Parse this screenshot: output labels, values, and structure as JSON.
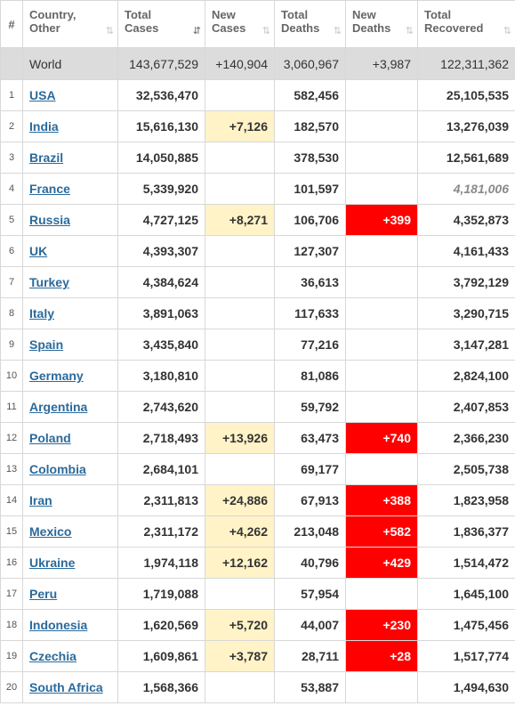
{
  "headers": {
    "num": "#",
    "country": [
      "Country,",
      "Other"
    ],
    "total_cases": [
      "Total",
      "Cases"
    ],
    "new_cases": [
      "New",
      "Cases"
    ],
    "total_deaths": [
      "Total",
      "Deaths"
    ],
    "new_deaths": [
      "New",
      "Deaths"
    ],
    "total_recovered": [
      "Total",
      "Recovered"
    ]
  },
  "sort_icons": {
    "inactive": "⇅",
    "active": "⇵"
  },
  "world": {
    "name": "World",
    "total_cases": "143,677,529",
    "new_cases": "+140,904",
    "total_deaths": "3,060,967",
    "new_deaths": "+3,987",
    "total_recovered": "122,311,362"
  },
  "rows": [
    {
      "num": "1",
      "country": "USA",
      "total_cases": "32,536,470",
      "new_cases": "",
      "total_deaths": "582,456",
      "new_deaths": "",
      "total_recovered": "25,105,535",
      "recovered_estimated": false
    },
    {
      "num": "2",
      "country": "India",
      "total_cases": "15,616,130",
      "new_cases": "+7,126",
      "total_deaths": "182,570",
      "new_deaths": "",
      "total_recovered": "13,276,039",
      "recovered_estimated": false
    },
    {
      "num": "3",
      "country": "Brazil",
      "total_cases": "14,050,885",
      "new_cases": "",
      "total_deaths": "378,530",
      "new_deaths": "",
      "total_recovered": "12,561,689",
      "recovered_estimated": false
    },
    {
      "num": "4",
      "country": "France",
      "total_cases": "5,339,920",
      "new_cases": "",
      "total_deaths": "101,597",
      "new_deaths": "",
      "total_recovered": "4,181,006",
      "recovered_estimated": true
    },
    {
      "num": "5",
      "country": "Russia",
      "total_cases": "4,727,125",
      "new_cases": "+8,271",
      "total_deaths": "106,706",
      "new_deaths": "+399",
      "total_recovered": "4,352,873",
      "recovered_estimated": false
    },
    {
      "num": "6",
      "country": "UK",
      "total_cases": "4,393,307",
      "new_cases": "",
      "total_deaths": "127,307",
      "new_deaths": "",
      "total_recovered": "4,161,433",
      "recovered_estimated": false
    },
    {
      "num": "7",
      "country": "Turkey",
      "total_cases": "4,384,624",
      "new_cases": "",
      "total_deaths": "36,613",
      "new_deaths": "",
      "total_recovered": "3,792,129",
      "recovered_estimated": false
    },
    {
      "num": "8",
      "country": "Italy",
      "total_cases": "3,891,063",
      "new_cases": "",
      "total_deaths": "117,633",
      "new_deaths": "",
      "total_recovered": "3,290,715",
      "recovered_estimated": false
    },
    {
      "num": "9",
      "country": "Spain",
      "total_cases": "3,435,840",
      "new_cases": "",
      "total_deaths": "77,216",
      "new_deaths": "",
      "total_recovered": "3,147,281",
      "recovered_estimated": false
    },
    {
      "num": "10",
      "country": "Germany",
      "total_cases": "3,180,810",
      "new_cases": "",
      "total_deaths": "81,086",
      "new_deaths": "",
      "total_recovered": "2,824,100",
      "recovered_estimated": false
    },
    {
      "num": "11",
      "country": "Argentina",
      "total_cases": "2,743,620",
      "new_cases": "",
      "total_deaths": "59,792",
      "new_deaths": "",
      "total_recovered": "2,407,853",
      "recovered_estimated": false
    },
    {
      "num": "12",
      "country": "Poland",
      "total_cases": "2,718,493",
      "new_cases": "+13,926",
      "total_deaths": "63,473",
      "new_deaths": "+740",
      "total_recovered": "2,366,230",
      "recovered_estimated": false
    },
    {
      "num": "13",
      "country": "Colombia",
      "total_cases": "2,684,101",
      "new_cases": "",
      "total_deaths": "69,177",
      "new_deaths": "",
      "total_recovered": "2,505,738",
      "recovered_estimated": false
    },
    {
      "num": "14",
      "country": "Iran",
      "total_cases": "2,311,813",
      "new_cases": "+24,886",
      "total_deaths": "67,913",
      "new_deaths": "+388",
      "total_recovered": "1,823,958",
      "recovered_estimated": false
    },
    {
      "num": "15",
      "country": "Mexico",
      "total_cases": "2,311,172",
      "new_cases": "+4,262",
      "total_deaths": "213,048",
      "new_deaths": "+582",
      "total_recovered": "1,836,377",
      "recovered_estimated": false
    },
    {
      "num": "16",
      "country": "Ukraine",
      "total_cases": "1,974,118",
      "new_cases": "+12,162",
      "total_deaths": "40,796",
      "new_deaths": "+429",
      "total_recovered": "1,514,472",
      "recovered_estimated": false
    },
    {
      "num": "17",
      "country": "Peru",
      "total_cases": "1,719,088",
      "new_cases": "",
      "total_deaths": "57,954",
      "new_deaths": "",
      "total_recovered": "1,645,100",
      "recovered_estimated": false
    },
    {
      "num": "18",
      "country": "Indonesia",
      "total_cases": "1,620,569",
      "new_cases": "+5,720",
      "total_deaths": "44,007",
      "new_deaths": "+230",
      "total_recovered": "1,475,456",
      "recovered_estimated": false
    },
    {
      "num": "19",
      "country": "Czechia",
      "total_cases": "1,609,861",
      "new_cases": "+3,787",
      "total_deaths": "28,711",
      "new_deaths": "+28",
      "total_recovered": "1,517,774",
      "recovered_estimated": false
    },
    {
      "num": "20",
      "country": "South Africa",
      "total_cases": "1,568,366",
      "new_cases": "",
      "total_deaths": "53,887",
      "new_deaths": "",
      "total_recovered": "1,494,630",
      "recovered_estimated": false
    }
  ],
  "colors": {
    "new_cases_highlight": "#fff3c7",
    "new_deaths_highlight": "#ff0000",
    "world_row_bg": "#dcdcdc",
    "country_link": "#2a6a9c"
  }
}
